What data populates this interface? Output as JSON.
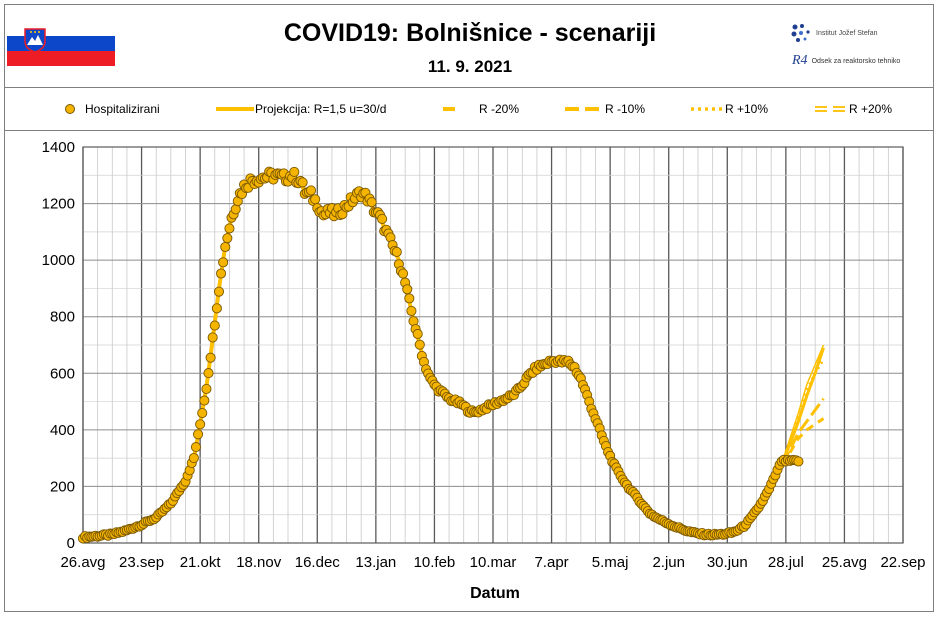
{
  "header": {
    "title": "COVID19: Bolnišnice - scenariji",
    "date": "11. 9. 2021",
    "institute": "Institut Jožef Stefan",
    "department": "Odsek za reaktorsko tehniko",
    "r4_logo": "R4"
  },
  "colors": {
    "marker_fill": "#f5b400",
    "marker_edge": "#7a5800",
    "projection": "#ffc000",
    "grid": "#7f7f7f",
    "flag_white": "#ffffff",
    "flag_blue": "#0d47c9",
    "flag_red": "#ee1c25"
  },
  "legend": [
    {
      "label": "Hospitalizirani",
      "style": "marker"
    },
    {
      "label": "Projekcija: R=1,5 u=30/d",
      "style": "solid"
    },
    {
      "label": "R -20%",
      "style": "dash"
    },
    {
      "label": "R -10%",
      "style": "dash-long"
    },
    {
      "label": "R +10%",
      "style": "dot"
    },
    {
      "label": "R +20%",
      "style": "double"
    }
  ],
  "chart_data": {
    "type": "scatter",
    "xlabel": "Datum",
    "ylabel": "",
    "ylim": [
      0,
      1400
    ],
    "yticks": [
      0,
      200,
      400,
      600,
      800,
      1000,
      1200,
      1400
    ],
    "x_range_days": [
      0,
      392
    ],
    "x_tick_labels": [
      "26.avg",
      "23.sep",
      "21.okt",
      "18.nov",
      "16.dec",
      "13.jan",
      "10.feb",
      "10.mar",
      "7.apr",
      "5.maj",
      "2.jun",
      "30.jun",
      "28.jul",
      "25.avg",
      "22.sep"
    ],
    "x_tick_days": [
      0,
      28,
      56,
      84,
      112,
      140,
      168,
      196,
      224,
      252,
      280,
      308,
      336,
      364,
      392
    ],
    "grid": "both",
    "legend_position": "top",
    "observed_anchor_points": [
      [
        0,
        20
      ],
      [
        14,
        30
      ],
      [
        21,
        45
      ],
      [
        28,
        65
      ],
      [
        35,
        90
      ],
      [
        42,
        140
      ],
      [
        49,
        220
      ],
      [
        53,
        300
      ],
      [
        56,
        420
      ],
      [
        59,
        550
      ],
      [
        62,
        720
      ],
      [
        65,
        900
      ],
      [
        68,
        1050
      ],
      [
        71,
        1150
      ],
      [
        74,
        1220
      ],
      [
        77,
        1260
      ],
      [
        80,
        1280
      ],
      [
        84,
        1290
      ],
      [
        88,
        1295
      ],
      [
        92,
        1300
      ],
      [
        96,
        1290
      ],
      [
        100,
        1300
      ],
      [
        104,
        1280
      ],
      [
        106,
        1240
      ],
      [
        109,
        1230
      ],
      [
        112,
        1200
      ],
      [
        115,
        1160
      ],
      [
        118,
        1170
      ],
      [
        121,
        1160
      ],
      [
        124,
        1180
      ],
      [
        127,
        1200
      ],
      [
        130,
        1220
      ],
      [
        133,
        1240
      ],
      [
        136,
        1220
      ],
      [
        139,
        1180
      ],
      [
        142,
        1150
      ],
      [
        145,
        1100
      ],
      [
        148,
        1050
      ],
      [
        151,
        1000
      ],
      [
        154,
        920
      ],
      [
        157,
        820
      ],
      [
        160,
        730
      ],
      [
        163,
        640
      ],
      [
        166,
        580
      ],
      [
        169,
        550
      ],
      [
        172,
        530
      ],
      [
        175,
        510
      ],
      [
        178,
        500
      ],
      [
        181,
        490
      ],
      [
        184,
        470
      ],
      [
        187,
        460
      ],
      [
        190,
        470
      ],
      [
        193,
        480
      ],
      [
        196,
        490
      ],
      [
        199,
        500
      ],
      [
        202,
        510
      ],
      [
        205,
        520
      ],
      [
        208,
        540
      ],
      [
        211,
        570
      ],
      [
        214,
        600
      ],
      [
        217,
        620
      ],
      [
        220,
        630
      ],
      [
        223,
        640
      ],
      [
        226,
        645
      ],
      [
        229,
        640
      ],
      [
        232,
        640
      ],
      [
        235,
        620
      ],
      [
        238,
        580
      ],
      [
        241,
        520
      ],
      [
        244,
        460
      ],
      [
        247,
        400
      ],
      [
        250,
        340
      ],
      [
        253,
        290
      ],
      [
        256,
        250
      ],
      [
        259,
        215
      ],
      [
        262,
        185
      ],
      [
        265,
        160
      ],
      [
        268,
        130
      ],
      [
        271,
        105
      ],
      [
        274,
        90
      ],
      [
        277,
        78
      ],
      [
        280,
        68
      ],
      [
        283,
        58
      ],
      [
        286,
        50
      ],
      [
        289,
        42
      ],
      [
        292,
        36
      ],
      [
        295,
        32
      ],
      [
        298,
        30
      ],
      [
        301,
        29
      ],
      [
        304,
        30
      ],
      [
        307,
        32
      ],
      [
        310,
        36
      ],
      [
        313,
        45
      ],
      [
        316,
        60
      ],
      [
        319,
        85
      ],
      [
        322,
        115
      ],
      [
        325,
        150
      ],
      [
        328,
        190
      ],
      [
        331,
        240
      ],
      [
        334,
        290
      ]
    ],
    "series": [
      {
        "name": "Hospitalizirani",
        "start_day": 0,
        "end_day": 342
      },
      {
        "name": "Projekcija: R=1,5 u=30/d",
        "points": [
          [
            334,
            280
          ],
          [
            338,
            350
          ],
          [
            342,
            430
          ],
          [
            346,
            520
          ],
          [
            350,
            600
          ],
          [
            354,
            690
          ]
        ]
      },
      {
        "name": "R -20%",
        "points": [
          [
            334,
            280
          ],
          [
            338,
            320
          ],
          [
            342,
            370
          ],
          [
            346,
            400
          ],
          [
            350,
            420
          ],
          [
            354,
            440
          ]
        ]
      },
      {
        "name": "R -10%",
        "points": [
          [
            334,
            280
          ],
          [
            338,
            330
          ],
          [
            342,
            390
          ],
          [
            346,
            430
          ],
          [
            350,
            470
          ],
          [
            354,
            510
          ]
        ]
      },
      {
        "name": "R +10%",
        "points": [
          [
            334,
            280
          ],
          [
            338,
            360
          ],
          [
            342,
            450
          ],
          [
            346,
            540
          ],
          [
            350,
            600
          ],
          [
            354,
            650
          ]
        ]
      },
      {
        "name": "R +20%",
        "points": [
          [
            334,
            280
          ],
          [
            338,
            370
          ],
          [
            342,
            460
          ],
          [
            346,
            560
          ],
          [
            350,
            630
          ],
          [
            354,
            700
          ]
        ]
      }
    ]
  }
}
